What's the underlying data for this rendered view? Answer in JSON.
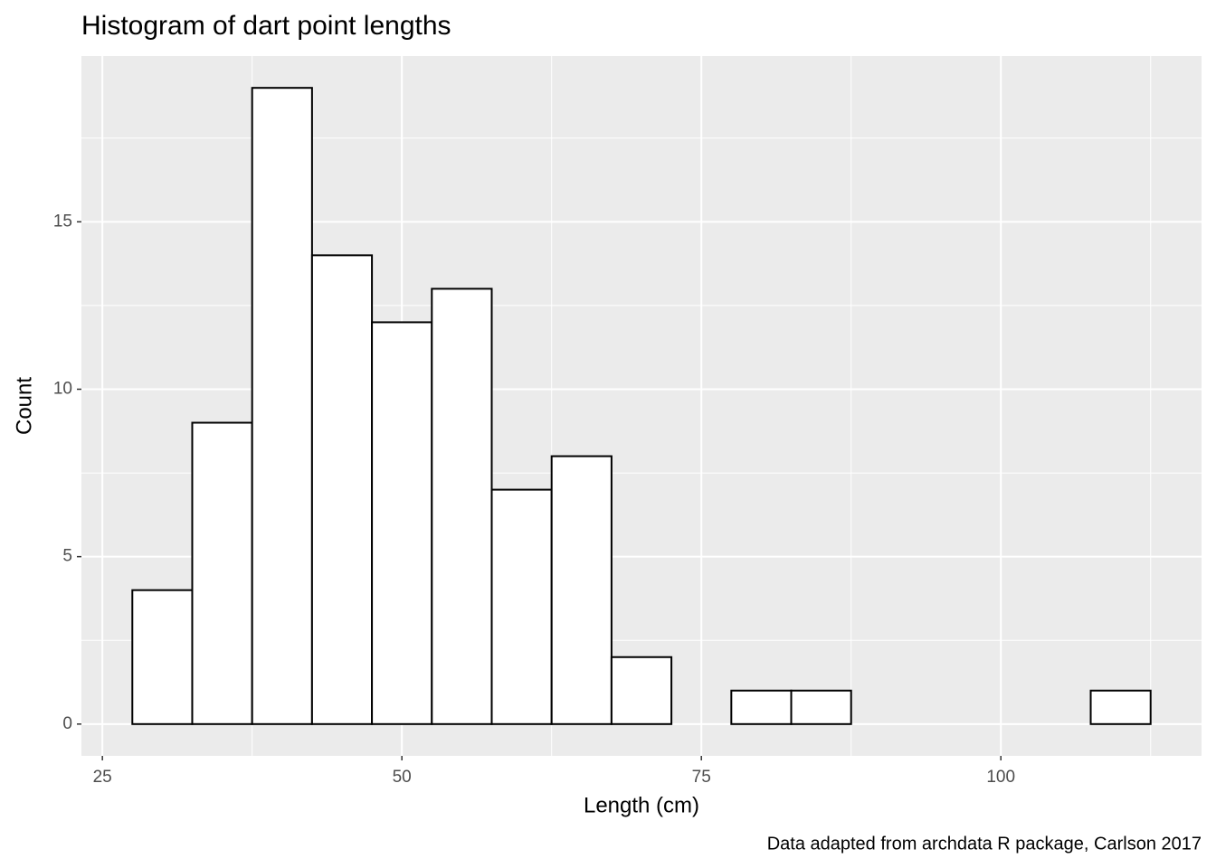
{
  "chart_data": {
    "type": "histogram",
    "title": "Histogram of dart point lengths",
    "x_label": "Length (cm)",
    "y_label": "Count",
    "caption": "Data adapted from archdata R package, Carlson 2017",
    "bins": [
      27.5,
      32.5,
      37.5,
      42.5,
      47.5,
      52.5,
      57.5,
      62.5,
      67.5,
      72.5,
      77.5,
      82.5,
      87.5,
      92.5,
      97.5,
      102.5,
      107.5,
      112.5
    ],
    "values": [
      4,
      9,
      19,
      14,
      12,
      13,
      7,
      8,
      2,
      0,
      1,
      1,
      0,
      0,
      0,
      0,
      1
    ],
    "color": "#ffffff",
    "edge_color": "#000000",
    "xlim": [
      23.25,
      116.75
    ],
    "xticks": [
      25,
      50,
      75,
      100
    ],
    "ylim": [
      -0.95,
      19.95
    ],
    "yticks": [
      0,
      5,
      10,
      15
    ],
    "grid": true
  }
}
